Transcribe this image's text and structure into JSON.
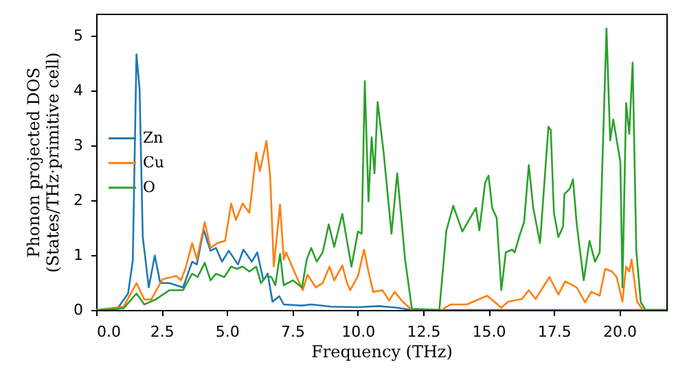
{
  "chart_data": {
    "type": "line",
    "xlabel": "Frequency (THz)",
    "ylabel": "Phonon projected DOS\n(States/THz·primitive cell)",
    "xlim": [
      0,
      21.8
    ],
    "ylim": [
      0,
      5.4
    ],
    "xticks": [
      {
        "value": 0,
        "label": "0.0"
      },
      {
        "value": 2.5,
        "label": "2.5"
      },
      {
        "value": 5,
        "label": "5.0"
      },
      {
        "value": 7.5,
        "label": "7.5"
      },
      {
        "value": 10,
        "label": "10.0"
      },
      {
        "value": 12.5,
        "label": "12.5"
      },
      {
        "value": 15,
        "label": "15.0"
      },
      {
        "value": 17.5,
        "label": "17.5"
      },
      {
        "value": 20,
        "label": "20.0"
      }
    ],
    "yticks": [
      0,
      1,
      2,
      3,
      4,
      5
    ],
    "grid": false,
    "legend": "left",
    "line_style": "solid",
    "marker": "none",
    "series": [
      {
        "name": "Zn",
        "color": "#1f77b4",
        "x": [
          0,
          0.79,
          1.22,
          1.4,
          1.54,
          1.66,
          1.78,
          2.01,
          2.24,
          2.45,
          2.8,
          3.06,
          3.32,
          3.67,
          3.85,
          4.11,
          4.37,
          4.58,
          4.81,
          5.07,
          5.42,
          5.63,
          5.95,
          6.16,
          6.39,
          6.56,
          6.74,
          7.0,
          7.17,
          7.87,
          8.22,
          9.0,
          10.0,
          10.8,
          11.5,
          12.07,
          21.8
        ],
        "values": [
          0,
          0.01,
          0.3,
          0.9,
          4.66,
          4.02,
          1.34,
          0.41,
          0.99,
          0.49,
          0.49,
          0.45,
          0.41,
          0.88,
          0.83,
          1.46,
          1.08,
          1.13,
          0.88,
          1.08,
          0.83,
          1.1,
          0.88,
          1.05,
          0.54,
          0.66,
          0.15,
          0.25,
          0.1,
          0.08,
          0.1,
          0.06,
          0.05,
          0.07,
          0.04,
          0,
          0
        ]
      },
      {
        "name": "Cu",
        "color": "#ff7f0e",
        "x": [
          0,
          1.05,
          1.54,
          1.84,
          2.1,
          2.54,
          3.06,
          3.24,
          3.41,
          3.67,
          3.85,
          4.15,
          4.37,
          4.64,
          4.93,
          5.16,
          5.34,
          5.6,
          5.86,
          6.12,
          6.26,
          6.51,
          6.65,
          6.79,
          7.03,
          7.17,
          7.26,
          7.61,
          7.9,
          8.08,
          8.4,
          8.66,
          8.92,
          9.1,
          9.41,
          9.59,
          9.71,
          10.01,
          10.24,
          10.41,
          10.59,
          10.94,
          11.2,
          11.41,
          11.72,
          12.07,
          13.2,
          13.55,
          14.17,
          14.95,
          15.49,
          15.75,
          16.28,
          16.54,
          16.8,
          17.33,
          17.67,
          17.93,
          18.37,
          18.69,
          18.93,
          19.25,
          19.46,
          19.72,
          19.9,
          20.12,
          20.26,
          20.38,
          20.47,
          20.68,
          20.9,
          21.8
        ],
        "values": [
          0,
          0.06,
          0.49,
          0.19,
          0.19,
          0.56,
          0.62,
          0.54,
          0.75,
          1.22,
          0.92,
          1.6,
          1.13,
          1.22,
          1.26,
          1.94,
          1.64,
          1.94,
          1.77,
          2.87,
          2.53,
          3.08,
          2.45,
          0.79,
          1.92,
          0.92,
          1.05,
          0.66,
          0.36,
          0.64,
          0.41,
          0.49,
          0.79,
          0.54,
          0.81,
          0.49,
          0.36,
          0.62,
          1.1,
          0.7,
          0.33,
          0.36,
          0.17,
          0.33,
          0.15,
          0,
          0,
          0.1,
          0.1,
          0.26,
          0.04,
          0.15,
          0.2,
          0.36,
          0.2,
          0.6,
          0.28,
          0.52,
          0.41,
          0.14,
          0.33,
          0.26,
          0.75,
          0.7,
          0.6,
          0.15,
          0.79,
          0.7,
          0.92,
          0.15,
          0,
          0
        ]
      },
      {
        "name": "O",
        "color": "#2ca02c",
        "x": [
          0,
          1.05,
          1.54,
          1.84,
          2.27,
          2.8,
          3.32,
          3.67,
          3.88,
          4.15,
          4.37,
          4.58,
          4.9,
          5.16,
          5.39,
          5.6,
          5.86,
          6.12,
          6.3,
          6.51,
          6.7,
          6.85,
          7.03,
          7.17,
          7.52,
          7.87,
          8.05,
          8.22,
          8.43,
          8.66,
          8.89,
          9.1,
          9.41,
          9.76,
          10.01,
          10.15,
          10.27,
          10.41,
          10.53,
          10.64,
          10.76,
          10.99,
          11.29,
          11.51,
          11.81,
          12.07,
          13.12,
          13.39,
          13.65,
          14.0,
          14.52,
          14.65,
          14.87,
          15.0,
          15.14,
          15.31,
          15.49,
          15.66,
          15.9,
          16.0,
          16.19,
          16.36,
          16.54,
          16.71,
          16.97,
          17.29,
          17.38,
          17.5,
          17.67,
          17.85,
          17.9,
          18.11,
          18.23,
          18.37,
          18.64,
          18.86,
          19.07,
          19.25,
          19.51,
          19.65,
          19.77,
          20.04,
          20.12,
          20.26,
          20.38,
          20.51,
          20.65,
          20.82,
          21.0,
          21.8
        ],
        "values": [
          0,
          0.03,
          0.3,
          0.1,
          0.19,
          0.36,
          0.36,
          0.66,
          0.6,
          0.86,
          0.54,
          0.66,
          0.6,
          0.79,
          0.75,
          0.79,
          0.7,
          0.79,
          0.49,
          0.62,
          0.6,
          0.45,
          1.02,
          0.45,
          0.54,
          0.41,
          0.92,
          1.13,
          0.88,
          1.05,
          1.56,
          1.15,
          1.75,
          0.79,
          1.43,
          1.39,
          4.17,
          1.98,
          3.15,
          2.49,
          3.79,
          2.87,
          1.39,
          2.49,
          0.92,
          0.02,
          0,
          1.45,
          1.9,
          1.43,
          1.86,
          1.45,
          2.32,
          2.45,
          1.86,
          1.68,
          0.36,
          1.05,
          1.1,
          1.05,
          1.36,
          1.6,
          2.64,
          1.86,
          1.22,
          3.34,
          3.28,
          1.77,
          1.33,
          1.52,
          2.11,
          2.21,
          2.38,
          1.57,
          0.54,
          1.26,
          0.88,
          1.05,
          5.13,
          3.09,
          3.47,
          2.7,
          0.41,
          3.77,
          3.21,
          4.51,
          1.08,
          0.14,
          0,
          0
        ]
      }
    ]
  }
}
